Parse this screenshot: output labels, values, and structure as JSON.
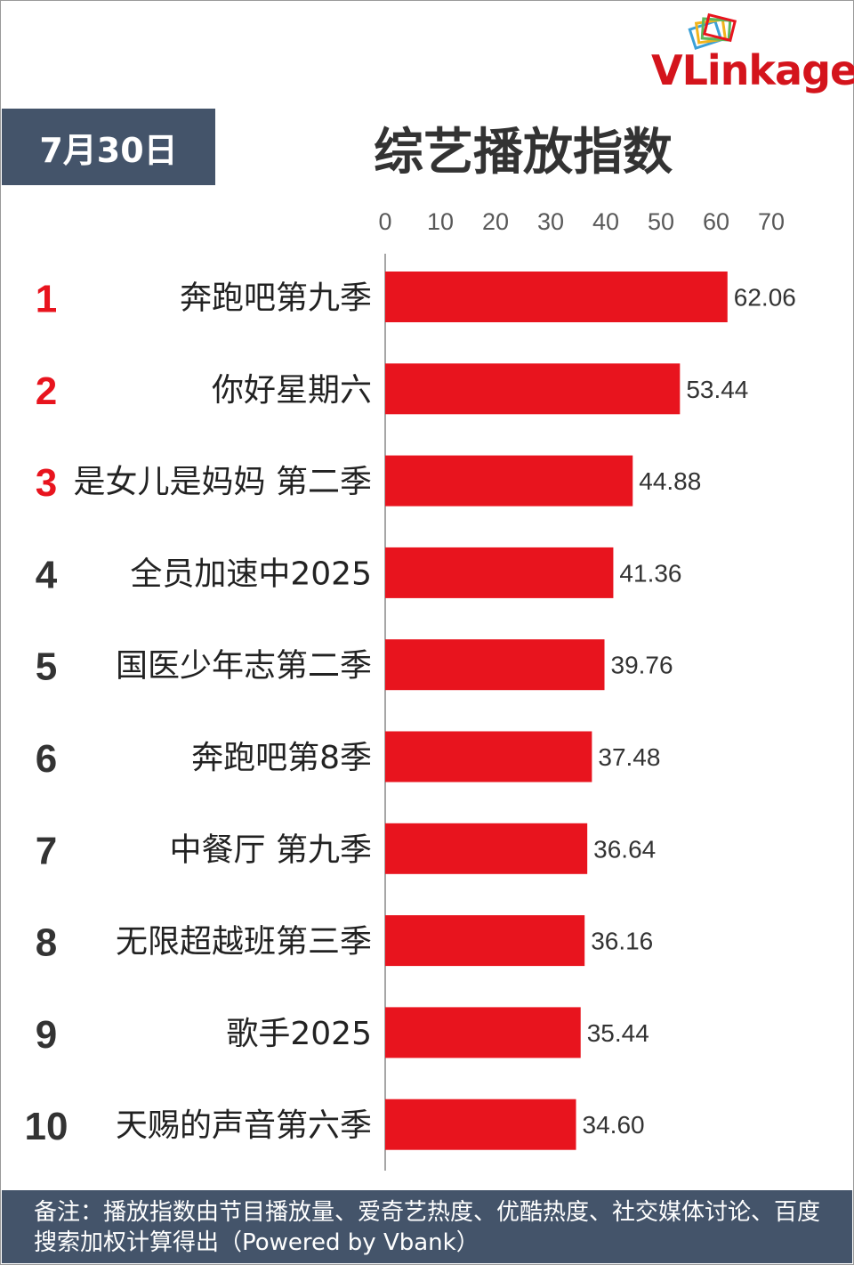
{
  "brand": {
    "logo_text": "VLinkage",
    "logo_v": "V",
    "logo_rest": "Linkage"
  },
  "header": {
    "date": "7月30日",
    "title": "综艺播放指数"
  },
  "footer": {
    "note": "备注：播放指数由节目播放量、爱奇艺热度、优酷热度、社交媒体讨论、百度搜索加权计算得出（Powered by Vbank）"
  },
  "colors": {
    "bar": "#e8141e",
    "rank_top": "#e8141e",
    "rank_other": "#333333",
    "panel": "#44546a",
    "axis": "#a6a6a6"
  },
  "chart_data": {
    "type": "bar",
    "orientation": "horizontal",
    "title": "综艺播放指数",
    "xlim": [
      0,
      70
    ],
    "xticks": [
      0,
      10,
      20,
      30,
      40,
      50,
      60,
      70
    ],
    "categories": [
      "奔跑吧第九季",
      "你好星期六",
      "是女儿是妈妈 第二季",
      "全员加速中2025",
      "国医少年志第二季",
      "奔跑吧第8季",
      "中餐厅 第九季",
      "无限超越班第三季",
      "歌手2025",
      "天赐的声音第六季"
    ],
    "ranks": [
      "1",
      "2",
      "3",
      "4",
      "5",
      "6",
      "7",
      "8",
      "9",
      "10"
    ],
    "values": [
      62.06,
      53.44,
      44.88,
      41.36,
      39.76,
      37.48,
      36.64,
      36.16,
      35.44,
      34.6
    ],
    "value_labels": [
      "62.06",
      "53.44",
      "44.88",
      "41.36",
      "39.76",
      "37.48",
      "36.64",
      "36.16",
      "35.44",
      "34.60"
    ],
    "grid": false,
    "legend": "none"
  }
}
